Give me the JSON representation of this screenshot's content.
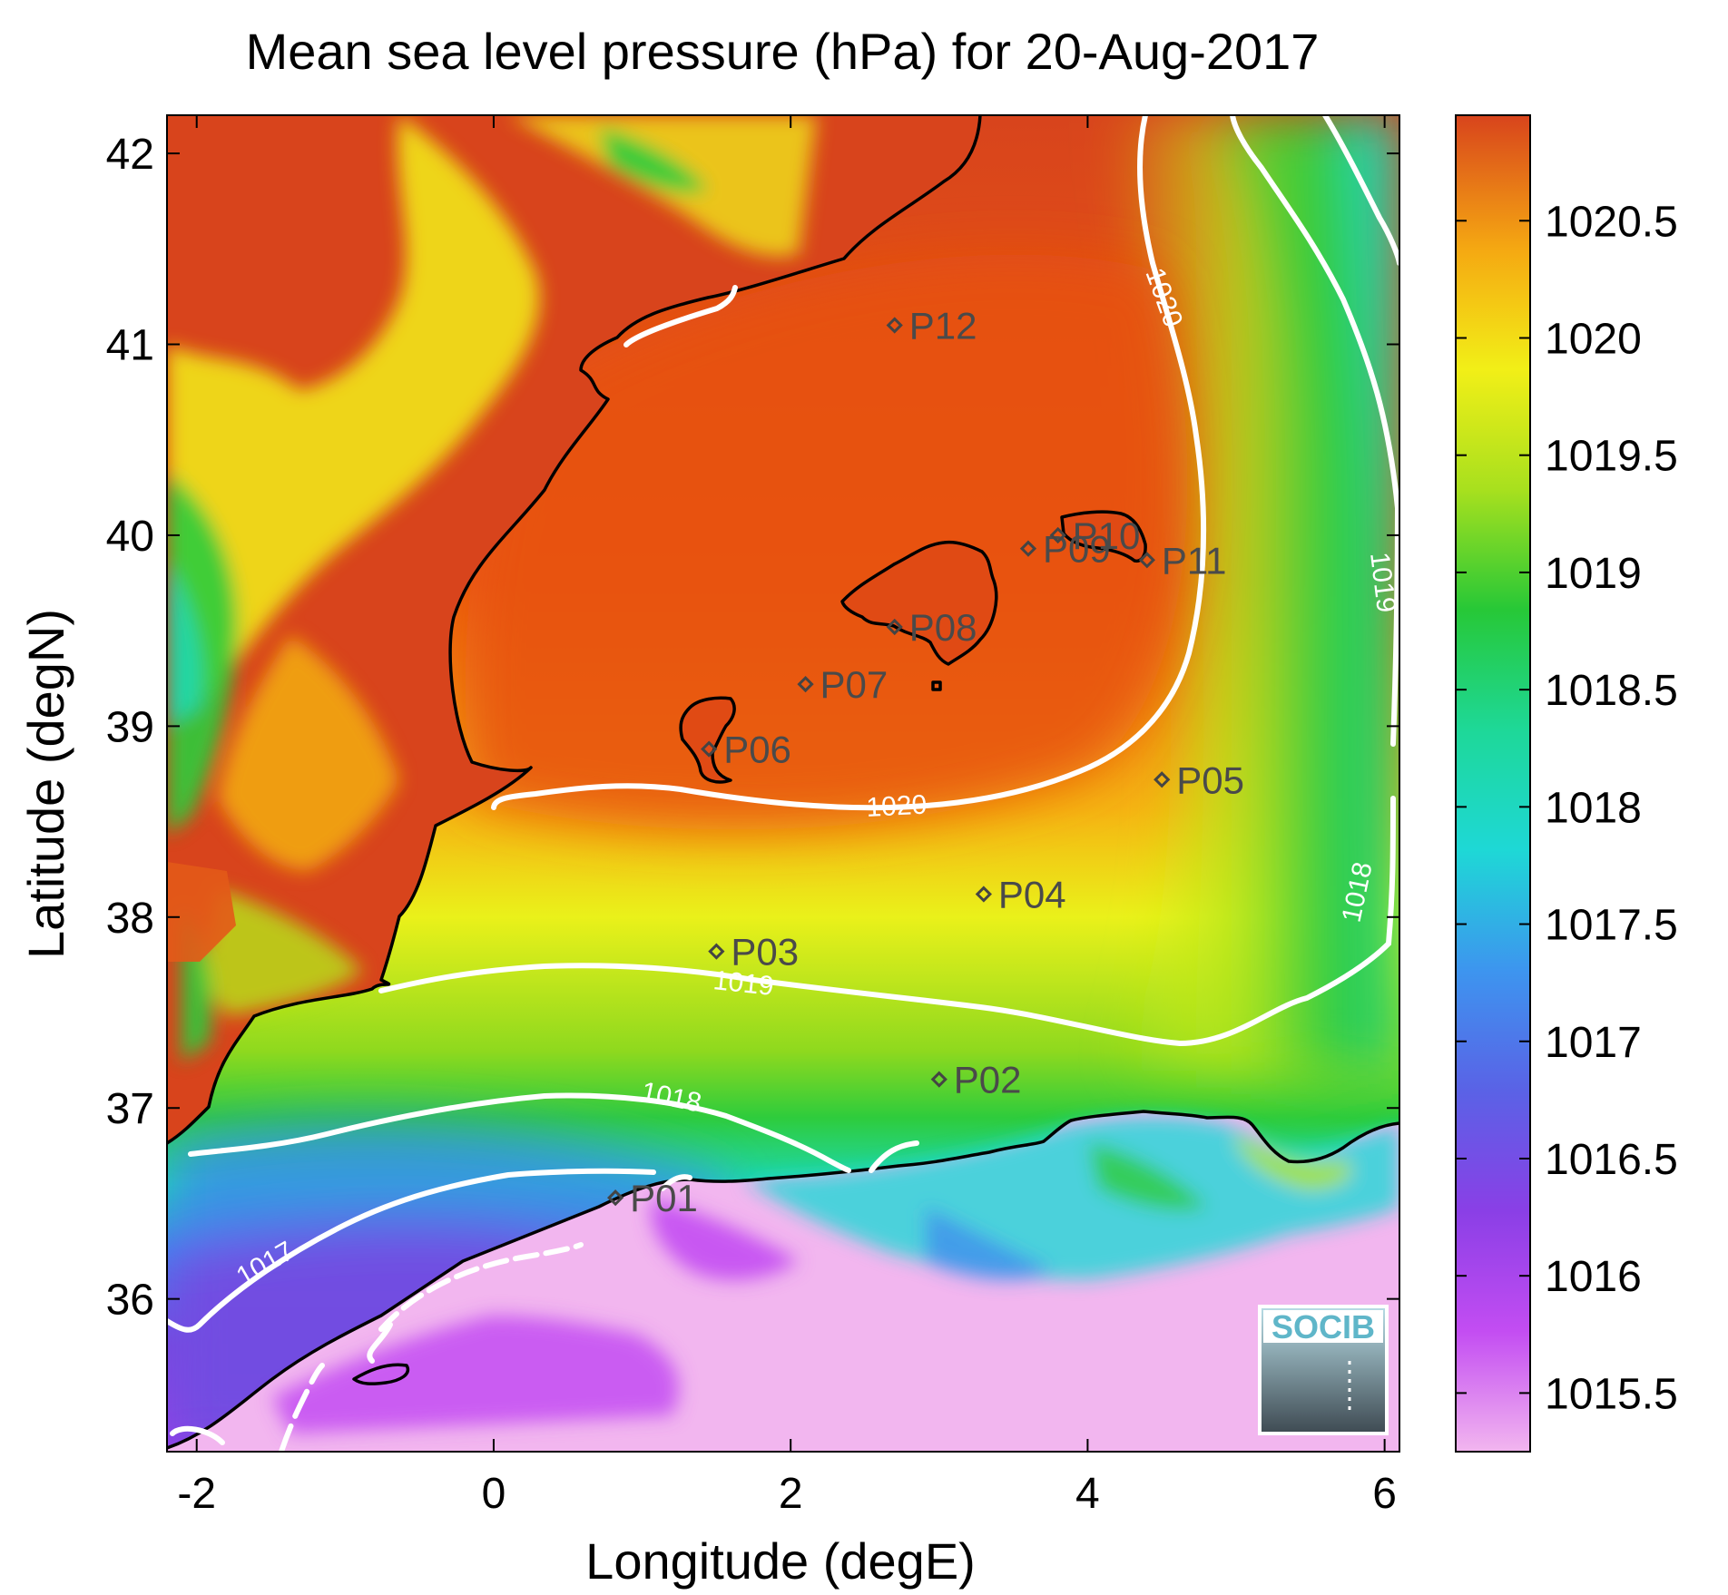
{
  "title": "Mean sea level pressure (hPa) for 20-Aug-2017",
  "xlabel": "Longitude (degE)",
  "ylabel": "Latitude (degN)",
  "logo_text": "SOCIB",
  "chart_data": {
    "type": "heatmap",
    "title": "Mean sea level pressure (hPa) for 20-Aug-2017",
    "xlabel": "Longitude (degE)",
    "ylabel": "Latitude (degN)",
    "xlim": [
      -2.2,
      6.1
    ],
    "ylim": [
      35.2,
      42.2
    ],
    "xticks": [
      -2,
      0,
      2,
      4,
      6
    ],
    "xtick_labels": [
      "-2",
      "0",
      "2",
      "4",
      "6"
    ],
    "yticks": [
      36,
      37,
      38,
      39,
      40,
      41,
      42
    ],
    "ytick_labels": [
      "36",
      "37",
      "38",
      "39",
      "40",
      "41",
      "42"
    ],
    "colorbar": {
      "range": [
        1015.25,
        1020.95
      ],
      "ticks": [
        1015.5,
        1016,
        1016.5,
        1017,
        1017.5,
        1018,
        1018.5,
        1019,
        1019.5,
        1020,
        1020.5
      ],
      "tick_labels": [
        "1015.5",
        "1016",
        "1016.5",
        "1017",
        "1017.5",
        "1018",
        "1018.5",
        "1019",
        "1019.5",
        "1020",
        "1020.5"
      ]
    },
    "colormap": [
      "#f2b6ef",
      "#c34df2",
      "#7848e0",
      "#3d86ef",
      "#1dd6d6",
      "#1ed898",
      "#27c837",
      "#a8e01e",
      "#f2ef17",
      "#f5b412",
      "#ec5b10",
      "#d8441c"
    ],
    "contours": [
      {
        "level": "1017",
        "label": "1017"
      },
      {
        "level": "1018",
        "label": "1018"
      },
      {
        "level": "1019",
        "label": "1019"
      },
      {
        "level": "1020",
        "label": "1020"
      }
    ],
    "stations": [
      {
        "name": "P01",
        "lon": 0.82,
        "lat": 36.53
      },
      {
        "name": "P02",
        "lon": 3.0,
        "lat": 37.15
      },
      {
        "name": "P03",
        "lon": 1.5,
        "lat": 37.82
      },
      {
        "name": "P04",
        "lon": 3.3,
        "lat": 38.12
      },
      {
        "name": "P05",
        "lon": 4.5,
        "lat": 38.72
      },
      {
        "name": "P06",
        "lon": 1.45,
        "lat": 38.88
      },
      {
        "name": "P07",
        "lon": 2.1,
        "lat": 39.22
      },
      {
        "name": "P08",
        "lon": 2.7,
        "lat": 39.52
      },
      {
        "name": "P09",
        "lon": 3.6,
        "lat": 39.93
      },
      {
        "name": "P10",
        "lon": 3.8,
        "lat": 40.0
      },
      {
        "name": "P11",
        "lon": 4.4,
        "lat": 39.87
      },
      {
        "name": "P12",
        "lon": 2.7,
        "lat": 41.1
      }
    ]
  }
}
